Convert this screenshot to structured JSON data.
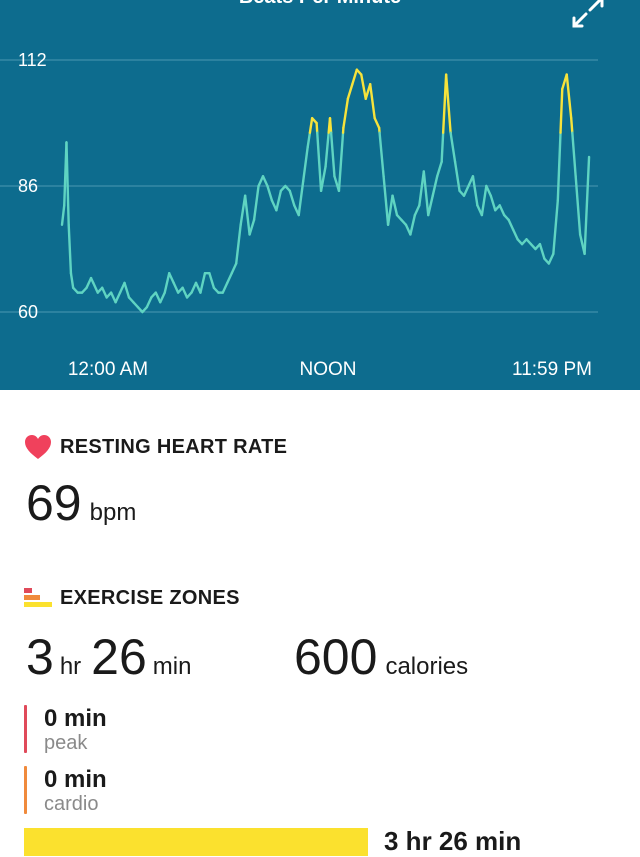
{
  "chart": {
    "title": "Beats Per Minute",
    "expand_icon": "expand-arrows-icon",
    "y_ticks": [
      "112",
      "86",
      "60"
    ],
    "x_ticks": [
      "12:00 AM",
      "NOON",
      "11:59 PM"
    ],
    "colors": {
      "background": "#0d6c8e",
      "line": "#5fd4c2",
      "peak_line": "#f7e33b",
      "grid": "#4b98b3"
    }
  },
  "chart_data": {
    "type": "line",
    "title": "Beats Per Minute",
    "xlabel": "",
    "ylabel": "",
    "x_unit": "hours since 12:00 AM",
    "ylim": [
      60,
      112
    ],
    "xlim": [
      0,
      24
    ],
    "highlight_threshold_bpm": 97,
    "series": [
      {
        "points": [
          [
            0.0,
            78
          ],
          [
            0.1,
            82
          ],
          [
            0.2,
            95
          ],
          [
            0.3,
            78
          ],
          [
            0.4,
            68
          ],
          [
            0.5,
            65
          ],
          [
            0.7,
            64
          ],
          [
            0.9,
            64
          ],
          [
            1.1,
            65
          ],
          [
            1.3,
            67
          ],
          [
            1.4,
            66
          ],
          [
            1.6,
            64
          ],
          [
            1.8,
            65
          ],
          [
            2.0,
            63
          ],
          [
            2.2,
            64
          ],
          [
            2.4,
            62
          ],
          [
            2.6,
            64
          ],
          [
            2.8,
            66
          ],
          [
            3.0,
            63
          ],
          [
            3.2,
            62
          ],
          [
            3.4,
            61
          ],
          [
            3.6,
            60
          ],
          [
            3.8,
            61
          ],
          [
            4.0,
            63
          ],
          [
            4.2,
            64
          ],
          [
            4.4,
            62
          ],
          [
            4.6,
            64
          ],
          [
            4.8,
            68
          ],
          [
            5.0,
            66
          ],
          [
            5.2,
            64
          ],
          [
            5.4,
            65
          ],
          [
            5.6,
            63
          ],
          [
            5.8,
            64
          ],
          [
            6.0,
            66
          ],
          [
            6.2,
            64
          ],
          [
            6.4,
            68
          ],
          [
            6.6,
            68
          ],
          [
            6.8,
            65
          ],
          [
            7.0,
            64
          ],
          [
            7.2,
            64
          ],
          [
            7.4,
            66
          ],
          [
            7.6,
            68
          ],
          [
            7.8,
            70
          ],
          [
            8.0,
            78
          ],
          [
            8.2,
            84
          ],
          [
            8.4,
            76
          ],
          [
            8.6,
            79
          ],
          [
            8.8,
            86
          ],
          [
            9.0,
            88
          ],
          [
            9.2,
            86
          ],
          [
            9.4,
            83
          ],
          [
            9.6,
            81
          ],
          [
            9.8,
            85
          ],
          [
            10.0,
            86
          ],
          [
            10.2,
            85
          ],
          [
            10.4,
            82
          ],
          [
            10.6,
            80
          ],
          [
            10.8,
            87
          ],
          [
            11.0,
            94
          ],
          [
            11.2,
            100
          ],
          [
            11.4,
            99
          ],
          [
            11.6,
            85
          ],
          [
            11.8,
            90
          ],
          [
            12.0,
            100
          ],
          [
            12.2,
            88
          ],
          [
            12.4,
            85
          ],
          [
            12.6,
            98
          ],
          [
            12.8,
            104
          ],
          [
            13.0,
            107
          ],
          [
            13.2,
            110
          ],
          [
            13.4,
            109
          ],
          [
            13.6,
            104
          ],
          [
            13.8,
            107
          ],
          [
            14.0,
            100
          ],
          [
            14.2,
            98
          ],
          [
            14.4,
            88
          ],
          [
            14.6,
            78
          ],
          [
            14.8,
            84
          ],
          [
            15.0,
            80
          ],
          [
            15.2,
            79
          ],
          [
            15.4,
            78
          ],
          [
            15.6,
            76
          ],
          [
            15.8,
            80
          ],
          [
            16.0,
            82
          ],
          [
            16.2,
            89
          ],
          [
            16.4,
            80
          ],
          [
            16.6,
            84
          ],
          [
            16.8,
            88
          ],
          [
            17.0,
            91
          ],
          [
            17.2,
            109
          ],
          [
            17.4,
            97
          ],
          [
            17.6,
            91
          ],
          [
            17.8,
            85
          ],
          [
            18.0,
            84
          ],
          [
            18.2,
            86
          ],
          [
            18.4,
            88
          ],
          [
            18.6,
            82
          ],
          [
            18.8,
            80
          ],
          [
            19.0,
            86
          ],
          [
            19.2,
            84
          ],
          [
            19.4,
            81
          ],
          [
            19.6,
            82
          ],
          [
            19.8,
            80
          ],
          [
            20.0,
            79
          ],
          [
            20.2,
            77
          ],
          [
            20.4,
            75
          ],
          [
            20.6,
            74
          ],
          [
            20.8,
            75
          ],
          [
            21.0,
            74
          ],
          [
            21.2,
            73
          ],
          [
            21.4,
            74
          ],
          [
            21.6,
            71
          ],
          [
            21.8,
            70
          ],
          [
            22.0,
            72
          ],
          [
            22.2,
            83
          ],
          [
            22.4,
            106
          ],
          [
            22.6,
            109
          ],
          [
            22.8,
            100
          ],
          [
            23.0,
            88
          ],
          [
            23.2,
            76
          ],
          [
            23.4,
            72
          ],
          [
            23.6,
            92
          ]
        ]
      }
    ]
  },
  "resting": {
    "icon": "heart-icon",
    "heading": "RESTING HEART RATE",
    "value": "69",
    "unit": "bpm",
    "color": "#f0415c"
  },
  "exercise": {
    "icon": "exercise-zones-icon",
    "heading": "EXERCISE ZONES",
    "hours": "3",
    "hours_unit": "hr",
    "minutes": "26",
    "minutes_unit": "min",
    "calories": "600",
    "calories_unit": "calories",
    "zones": [
      {
        "value": "0 min",
        "name": "peak",
        "color": "#e04a5a"
      },
      {
        "value": "0 min",
        "name": "cardio",
        "color": "#f08a3c"
      }
    ],
    "fat_burn": {
      "value": "3 hr 26 min",
      "fraction": 1.0,
      "color": "#fbe12e"
    }
  }
}
